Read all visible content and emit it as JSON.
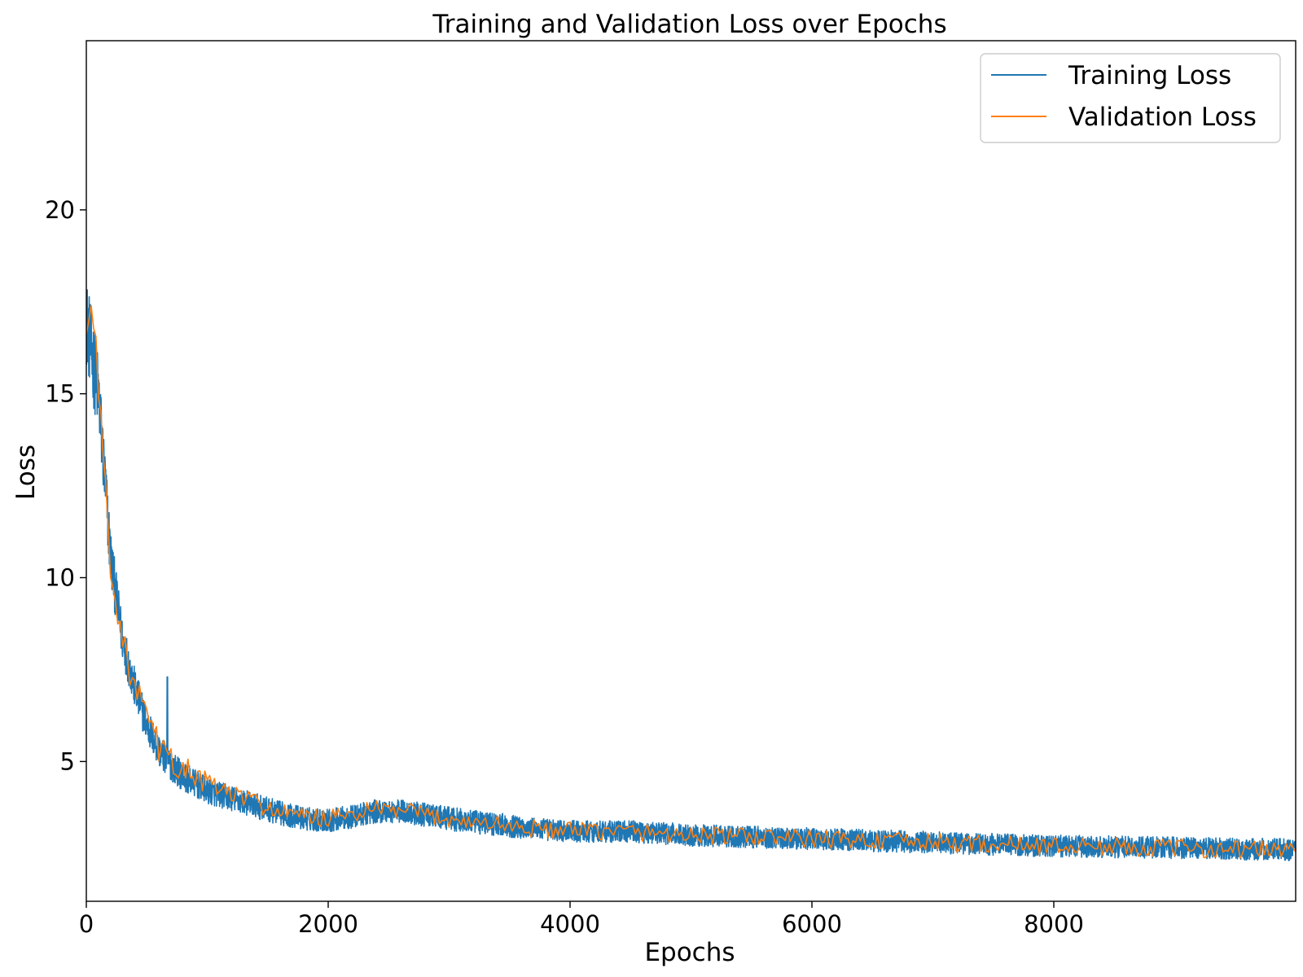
{
  "chart_data": {
    "type": "line",
    "title": "Training and Validation Loss over Epochs",
    "xlabel": "Epochs",
    "ylabel": "Loss",
    "xlim": [
      0,
      10000
    ],
    "ylim": [
      1.2,
      24.6
    ],
    "xticks": [
      0,
      2000,
      4000,
      6000,
      8000
    ],
    "yticks": [
      5,
      10,
      15,
      20
    ],
    "grid": false,
    "legend_position": "top-right",
    "series": [
      {
        "name": "Training Loss",
        "color": "#1f77b4",
        "x": [
          0,
          50,
          100,
          150,
          200,
          250,
          300,
          400,
          500,
          600,
          700,
          800,
          900,
          1000,
          1200,
          1400,
          1600,
          1800,
          2000,
          2200,
          2400,
          2600,
          2800,
          3000,
          3200,
          3400,
          3600,
          3800,
          4000,
          4500,
          5000,
          5500,
          6000,
          6500,
          7000,
          7500,
          8000,
          8500,
          9000,
          9500,
          10000
        ],
        "values": [
          17.0,
          16.0,
          15.0,
          12.8,
          10.6,
          9.4,
          8.3,
          7.0,
          6.0,
          5.3,
          4.9,
          4.6,
          4.4,
          4.2,
          4.0,
          3.8,
          3.6,
          3.45,
          3.4,
          3.5,
          3.65,
          3.65,
          3.55,
          3.45,
          3.35,
          3.3,
          3.2,
          3.15,
          3.1,
          3.1,
          3.0,
          2.95,
          2.9,
          2.85,
          2.8,
          2.75,
          2.7,
          2.68,
          2.65,
          2.62,
          2.6
        ],
        "noise": [
          1.2,
          1.2,
          1.1,
          0.9,
          0.8,
          0.7,
          0.6,
          0.55,
          0.5,
          0.45,
          0.42,
          0.4,
          0.38,
          0.36,
          0.35,
          0.34,
          0.33,
          0.32,
          0.32,
          0.32,
          0.32,
          0.32,
          0.32,
          0.32,
          0.32,
          0.32,
          0.3,
          0.3,
          0.3,
          0.3,
          0.3,
          0.3,
          0.3,
          0.3,
          0.3,
          0.3,
          0.3,
          0.3,
          0.3,
          0.3,
          0.3
        ]
      },
      {
        "name": "Validation Loss",
        "color": "#ff7f0e",
        "x": [
          0,
          50,
          100,
          150,
          200,
          250,
          300,
          400,
          500,
          600,
          700,
          800,
          900,
          1000,
          1200,
          1400,
          1600,
          1800,
          2000,
          2200,
          2400,
          2600,
          2800,
          3000,
          3200,
          3400,
          3600,
          3800,
          4000,
          4500,
          5000,
          5500,
          6000,
          6500,
          7000,
          7500,
          8000,
          8500,
          9000,
          9500,
          10000
        ],
        "values": [
          16.6,
          17.0,
          15.2,
          12.8,
          10.5,
          9.3,
          8.2,
          7.0,
          6.2,
          5.4,
          5.0,
          4.8,
          4.6,
          4.4,
          4.1,
          3.9,
          3.6,
          3.5,
          3.45,
          3.55,
          3.7,
          3.65,
          3.55,
          3.45,
          3.35,
          3.3,
          3.2,
          3.15,
          3.1,
          3.1,
          3.0,
          2.95,
          2.9,
          2.85,
          2.8,
          2.75,
          2.7,
          2.68,
          2.65,
          2.62,
          2.6
        ],
        "noise": [
          0.8,
          0.8,
          0.7,
          0.6,
          0.5,
          0.5,
          0.45,
          0.45,
          0.45,
          0.4,
          0.4,
          0.38,
          0.35,
          0.33,
          0.3,
          0.28,
          0.26,
          0.25,
          0.25,
          0.25,
          0.25,
          0.25,
          0.25,
          0.25,
          0.25,
          0.25,
          0.25,
          0.25,
          0.25,
          0.25,
          0.25,
          0.25,
          0.25,
          0.25,
          0.25,
          0.25,
          0.25,
          0.25,
          0.25,
          0.25,
          0.25
        ]
      }
    ]
  }
}
